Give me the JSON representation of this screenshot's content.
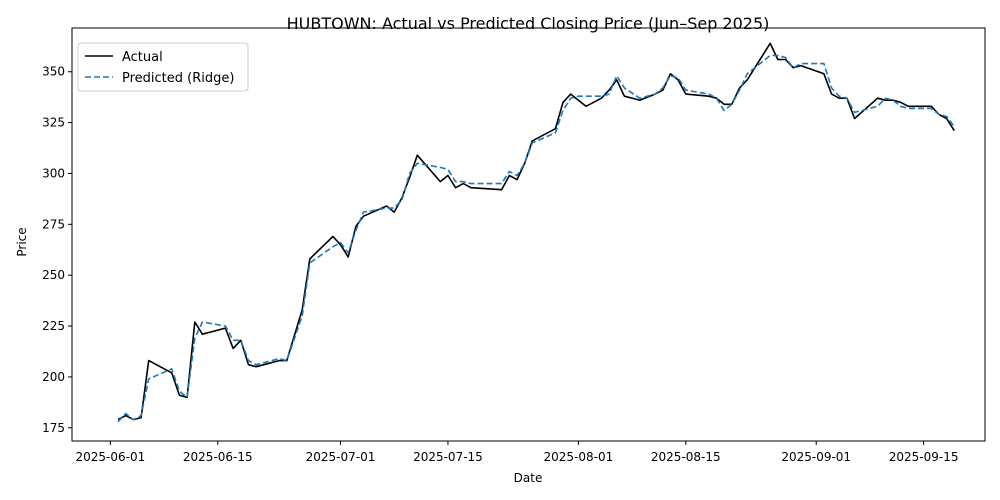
{
  "chart_data": {
    "type": "line",
    "title": "HUBTOWN: Actual vs Predicted Closing Price (Jun–Sep 2025)",
    "xlabel": "Date",
    "ylabel": "Price",
    "x_ticks": [
      "2025-06-01",
      "2025-06-15",
      "2025-07-01",
      "2025-07-15",
      "2025-08-01",
      "2025-08-15",
      "2025-09-01",
      "2025-09-15"
    ],
    "y_ticks": [
      175,
      200,
      225,
      250,
      275,
      300,
      325,
      350
    ],
    "xlim": [
      "2025-05-27",
      "2025-09-23"
    ],
    "ylim": [
      168.5,
      371.5
    ],
    "legend_position": "upper left",
    "grid": false,
    "series": [
      {
        "name": "Actual",
        "color": "#000000",
        "style": "solid",
        "points": [
          [
            "2025-06-02",
            179
          ],
          [
            "2025-06-03",
            181
          ],
          [
            "2025-06-04",
            179
          ],
          [
            "2025-06-05",
            180
          ],
          [
            "2025-06-06",
            208
          ],
          [
            "2025-06-09",
            202
          ],
          [
            "2025-06-10",
            191
          ],
          [
            "2025-06-11",
            190
          ],
          [
            "2025-06-12",
            227
          ],
          [
            "2025-06-13",
            221
          ],
          [
            "2025-06-16",
            224
          ],
          [
            "2025-06-17",
            214
          ],
          [
            "2025-06-18",
            218
          ],
          [
            "2025-06-19",
            206
          ],
          [
            "2025-06-20",
            205
          ],
          [
            "2025-06-23",
            208
          ],
          [
            "2025-06-24",
            208
          ],
          [
            "2025-06-26",
            233
          ],
          [
            "2025-06-27",
            258
          ],
          [
            "2025-06-30",
            269
          ],
          [
            "2025-07-01",
            265
          ],
          [
            "2025-07-02",
            259
          ],
          [
            "2025-07-03",
            274
          ],
          [
            "2025-07-04",
            279
          ],
          [
            "2025-07-07",
            284
          ],
          [
            "2025-07-08",
            281
          ],
          [
            "2025-07-09",
            288
          ],
          [
            "2025-07-10",
            298
          ],
          [
            "2025-07-11",
            309
          ],
          [
            "2025-07-14",
            296
          ],
          [
            "2025-07-15",
            299
          ],
          [
            "2025-07-16",
            293
          ],
          [
            "2025-07-17",
            295
          ],
          [
            "2025-07-18",
            293
          ],
          [
            "2025-07-22",
            292
          ],
          [
            "2025-07-23",
            299
          ],
          [
            "2025-07-24",
            297
          ],
          [
            "2025-07-25",
            305
          ],
          [
            "2025-07-26",
            316
          ],
          [
            "2025-07-29",
            322
          ],
          [
            "2025-07-30",
            335
          ],
          [
            "2025-07-31",
            339
          ],
          [
            "2025-08-01",
            336
          ],
          [
            "2025-08-02",
            333
          ],
          [
            "2025-08-04",
            337
          ],
          [
            "2025-08-05",
            341
          ],
          [
            "2025-08-06",
            346
          ],
          [
            "2025-08-07",
            338
          ],
          [
            "2025-08-09",
            336
          ],
          [
            "2025-08-11",
            339
          ],
          [
            "2025-08-12",
            341
          ],
          [
            "2025-08-13",
            349
          ],
          [
            "2025-08-14",
            346
          ],
          [
            "2025-08-15",
            339
          ],
          [
            "2025-08-18",
            338
          ],
          [
            "2025-08-19",
            337
          ],
          [
            "2025-08-20",
            334
          ],
          [
            "2025-08-21",
            334
          ],
          [
            "2025-08-22",
            342
          ],
          [
            "2025-08-23",
            346
          ],
          [
            "2025-08-26",
            364
          ],
          [
            "2025-08-27",
            356
          ],
          [
            "2025-08-28",
            356
          ],
          [
            "2025-08-29",
            352
          ],
          [
            "2025-08-30",
            353
          ],
          [
            "2025-09-02",
            349
          ],
          [
            "2025-09-03",
            339
          ],
          [
            "2025-09-04",
            337
          ],
          [
            "2025-09-05",
            337
          ],
          [
            "2025-09-06",
            327
          ],
          [
            "2025-09-09",
            337
          ],
          [
            "2025-09-10",
            336
          ],
          [
            "2025-09-11",
            336
          ],
          [
            "2025-09-12",
            335
          ],
          [
            "2025-09-13",
            333
          ],
          [
            "2025-09-16",
            333
          ],
          [
            "2025-09-17",
            329
          ],
          [
            "2025-09-18",
            327
          ],
          [
            "2025-09-19",
            321
          ]
        ]
      },
      {
        "name": "Predicted (Ridge)",
        "color": "#1f77b4",
        "style": "dashed",
        "points": [
          [
            "2025-06-02",
            178
          ],
          [
            "2025-06-03",
            182
          ],
          [
            "2025-06-04",
            179
          ],
          [
            "2025-06-05",
            181
          ],
          [
            "2025-06-06",
            199
          ],
          [
            "2025-06-09",
            204
          ],
          [
            "2025-06-10",
            193
          ],
          [
            "2025-06-11",
            190
          ],
          [
            "2025-06-12",
            219
          ],
          [
            "2025-06-13",
            227
          ],
          [
            "2025-06-16",
            225
          ],
          [
            "2025-06-17",
            218
          ],
          [
            "2025-06-18",
            218
          ],
          [
            "2025-06-19",
            208
          ],
          [
            "2025-06-20",
            206
          ],
          [
            "2025-06-23",
            209
          ],
          [
            "2025-06-24",
            208
          ],
          [
            "2025-06-26",
            230
          ],
          [
            "2025-06-27",
            256
          ],
          [
            "2025-06-30",
            264
          ],
          [
            "2025-07-01",
            266
          ],
          [
            "2025-07-02",
            261
          ],
          [
            "2025-07-03",
            272
          ],
          [
            "2025-07-04",
            281
          ],
          [
            "2025-07-07",
            283
          ],
          [
            "2025-07-08",
            283
          ],
          [
            "2025-07-09",
            287
          ],
          [
            "2025-07-10",
            300
          ],
          [
            "2025-07-11",
            305
          ],
          [
            "2025-07-14",
            303
          ],
          [
            "2025-07-15",
            302
          ],
          [
            "2025-07-16",
            296
          ],
          [
            "2025-07-17",
            296
          ],
          [
            "2025-07-18",
            295
          ],
          [
            "2025-07-22",
            295
          ],
          [
            "2025-07-23",
            301
          ],
          [
            "2025-07-24",
            299
          ],
          [
            "2025-07-25",
            305
          ],
          [
            "2025-07-26",
            315
          ],
          [
            "2025-07-29",
            320
          ],
          [
            "2025-07-30",
            331
          ],
          [
            "2025-07-31",
            337
          ],
          [
            "2025-08-01",
            338
          ],
          [
            "2025-08-02",
            338
          ],
          [
            "2025-08-04",
            338
          ],
          [
            "2025-08-05",
            339
          ],
          [
            "2025-08-06",
            348
          ],
          [
            "2025-08-07",
            342
          ],
          [
            "2025-08-09",
            337
          ],
          [
            "2025-08-11",
            339
          ],
          [
            "2025-08-12",
            342
          ],
          [
            "2025-08-13",
            348
          ],
          [
            "2025-08-14",
            347
          ],
          [
            "2025-08-15",
            341
          ],
          [
            "2025-08-18",
            339
          ],
          [
            "2025-08-19",
            337
          ],
          [
            "2025-08-20",
            331
          ],
          [
            "2025-08-21",
            334
          ],
          [
            "2025-08-22",
            341
          ],
          [
            "2025-08-23",
            349
          ],
          [
            "2025-08-26",
            358
          ],
          [
            "2025-08-27",
            358
          ],
          [
            "2025-08-28",
            357
          ],
          [
            "2025-08-29",
            352
          ],
          [
            "2025-08-30",
            354
          ],
          [
            "2025-09-02",
            354
          ],
          [
            "2025-09-03",
            342
          ],
          [
            "2025-09-04",
            338
          ],
          [
            "2025-09-05",
            337
          ],
          [
            "2025-09-06",
            330
          ],
          [
            "2025-09-09",
            333
          ],
          [
            "2025-09-10",
            337
          ],
          [
            "2025-09-11",
            336
          ],
          [
            "2025-09-12",
            333
          ],
          [
            "2025-09-13",
            332
          ],
          [
            "2025-09-16",
            332
          ],
          [
            "2025-09-17",
            329
          ],
          [
            "2025-09-18",
            328
          ],
          [
            "2025-09-19",
            323
          ]
        ]
      }
    ]
  }
}
